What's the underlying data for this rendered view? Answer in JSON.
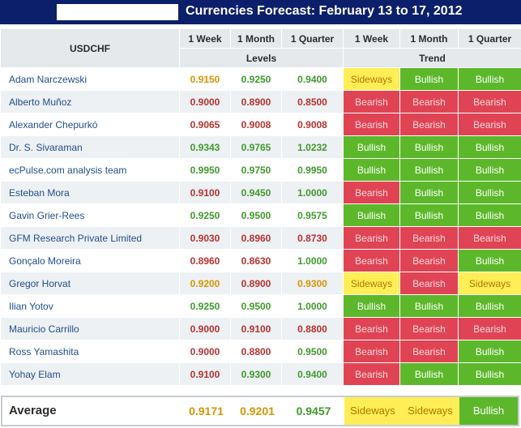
{
  "header": {
    "title": "Currencies Forecast: February 13 to 17, 2012",
    "pair": "USDCHF",
    "columns": [
      "1 Week",
      "1 Month",
      "1 Quarter",
      "1 Week",
      "1 Month",
      "1 Quarter"
    ],
    "group_levels": "Levels",
    "group_trend": "Trend"
  },
  "colors": {
    "title_bg": "#0c1f6b",
    "bullish": "#5cb82a",
    "bearish": "#e04454",
    "sideways": "#ffee55",
    "level_green": "#3f9a2c",
    "level_red": "#b8312f",
    "level_orange": "#d69500"
  },
  "rows": [
    {
      "name": "Adam Narczewski",
      "levels": [
        {
          "v": "0.9150",
          "c": "orange"
        },
        {
          "v": "0.9250",
          "c": "green"
        },
        {
          "v": "0.9400",
          "c": "green"
        }
      ],
      "trend": [
        "Sideways",
        "Bullish",
        "Bullish"
      ]
    },
    {
      "name": "Alberto Muñoz",
      "levels": [
        {
          "v": "0.9000",
          "c": "red"
        },
        {
          "v": "0.8900",
          "c": "red"
        },
        {
          "v": "0.8500",
          "c": "red"
        }
      ],
      "trend": [
        "Bearish",
        "Bearish",
        "Bearish"
      ]
    },
    {
      "name": "Alexander Chepurkó",
      "levels": [
        {
          "v": "0.9065",
          "c": "red"
        },
        {
          "v": "0.9008",
          "c": "red"
        },
        {
          "v": "0.9008",
          "c": "red"
        }
      ],
      "trend": [
        "Bearish",
        "Bearish",
        "Bearish"
      ]
    },
    {
      "name": "Dr. S. Sivaraman",
      "levels": [
        {
          "v": "0.9343",
          "c": "green"
        },
        {
          "v": "0.9765",
          "c": "green"
        },
        {
          "v": "1.0232",
          "c": "green"
        }
      ],
      "trend": [
        "Bullish",
        "Bullish",
        "Bullish"
      ]
    },
    {
      "name": "ecPulse.com analysis team",
      "levels": [
        {
          "v": "0.9950",
          "c": "green"
        },
        {
          "v": "0.9750",
          "c": "green"
        },
        {
          "v": "0.9950",
          "c": "green"
        }
      ],
      "trend": [
        "Bullish",
        "Bullish",
        "Bullish"
      ]
    },
    {
      "name": "Esteban Mora",
      "levels": [
        {
          "v": "0.9100",
          "c": "red"
        },
        {
          "v": "0.9450",
          "c": "green"
        },
        {
          "v": "1.0000",
          "c": "green"
        }
      ],
      "trend": [
        "Bearish",
        "Bullish",
        "Bullish"
      ]
    },
    {
      "name": "Gavin Grier-Rees",
      "levels": [
        {
          "v": "0.9250",
          "c": "green"
        },
        {
          "v": "0.9500",
          "c": "green"
        },
        {
          "v": "0.9575",
          "c": "green"
        }
      ],
      "trend": [
        "Bullish",
        "Bullish",
        "Bullish"
      ]
    },
    {
      "name": "GFM Research Private Limited",
      "levels": [
        {
          "v": "0.9030",
          "c": "red"
        },
        {
          "v": "0.8960",
          "c": "red"
        },
        {
          "v": "0.8730",
          "c": "red"
        }
      ],
      "trend": [
        "Bearish",
        "Bearish",
        "Bearish"
      ]
    },
    {
      "name": "Gonçalo Moreira",
      "levels": [
        {
          "v": "0.8960",
          "c": "red"
        },
        {
          "v": "0.8630",
          "c": "red"
        },
        {
          "v": "1.0000",
          "c": "green"
        }
      ],
      "trend": [
        "Bearish",
        "Bearish",
        "Bullish"
      ]
    },
    {
      "name": "Gregor Horvat",
      "levels": [
        {
          "v": "0.9200",
          "c": "orange"
        },
        {
          "v": "0.8900",
          "c": "red"
        },
        {
          "v": "0.9300",
          "c": "orange"
        }
      ],
      "trend": [
        "Sideways",
        "Bearish",
        "Sideways"
      ]
    },
    {
      "name": "Ilian Yotov",
      "levels": [
        {
          "v": "0.9250",
          "c": "green"
        },
        {
          "v": "0.9500",
          "c": "green"
        },
        {
          "v": "1.0000",
          "c": "green"
        }
      ],
      "trend": [
        "Bullish",
        "Bullish",
        "Bullish"
      ]
    },
    {
      "name": "Mauricio Carrillo",
      "levels": [
        {
          "v": "0.9000",
          "c": "red"
        },
        {
          "v": "0.9100",
          "c": "red"
        },
        {
          "v": "0.8800",
          "c": "red"
        }
      ],
      "trend": [
        "Bearish",
        "Bearish",
        "Bearish"
      ]
    },
    {
      "name": "Ross Yamashita",
      "levels": [
        {
          "v": "0.9000",
          "c": "red"
        },
        {
          "v": "0.8800",
          "c": "red"
        },
        {
          "v": "0.9500",
          "c": "green"
        }
      ],
      "trend": [
        "Bearish",
        "Bearish",
        "Bullish"
      ]
    },
    {
      "name": "Yohay Elam",
      "levels": [
        {
          "v": "0.9100",
          "c": "red"
        },
        {
          "v": "0.9300",
          "c": "green"
        },
        {
          "v": "0.9400",
          "c": "green"
        }
      ],
      "trend": [
        "Bearish",
        "Bullish",
        "Bullish"
      ]
    }
  ],
  "average": {
    "label": "Average",
    "levels": [
      {
        "v": "0.9171",
        "c": "orange"
      },
      {
        "v": "0.9201",
        "c": "orange"
      },
      {
        "v": "0.9457",
        "c": "green"
      }
    ],
    "trend": [
      "Sideways",
      "Sideways",
      "Bullish"
    ]
  }
}
